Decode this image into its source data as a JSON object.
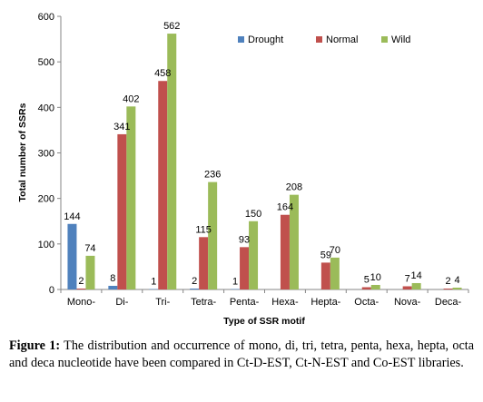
{
  "chart_data": {
    "type": "bar",
    "categories": [
      "Mono-",
      "Di-",
      "Tri-",
      "Tetra-",
      "Penta-",
      "Hexa-",
      "Hepta-",
      "Octa-",
      "Nova-",
      "Deca-"
    ],
    "series": [
      {
        "name": "Drought",
        "color": "#4F81BD",
        "values": [
          144,
          8,
          1,
          2,
          1,
          null,
          null,
          null,
          null,
          null
        ]
      },
      {
        "name": "Normal",
        "color": "#C0504D",
        "values": [
          2,
          341,
          458,
          115,
          93,
          164,
          59,
          5,
          7,
          2
        ]
      },
      {
        "name": "Wild",
        "color": "#9BBB59",
        "values": [
          74,
          402,
          562,
          236,
          150,
          208,
          70,
          10,
          14,
          4
        ]
      }
    ],
    "xlabel": "Type of SSR motif",
    "ylabel": "Total number of SSRs",
    "ylim": [
      0,
      600
    ],
    "yticks": [
      0,
      100,
      200,
      300,
      400,
      500,
      600
    ],
    "legend_position": "top-right",
    "grid": false
  },
  "caption": {
    "label": "Figure 1:",
    "text": "The distribution and occurrence of mono, di, tri, tetra, penta, hexa, hepta, octa and deca nucleotide have been compared in Ct-D-EST, Ct-N-EST and Co-EST libraries."
  }
}
